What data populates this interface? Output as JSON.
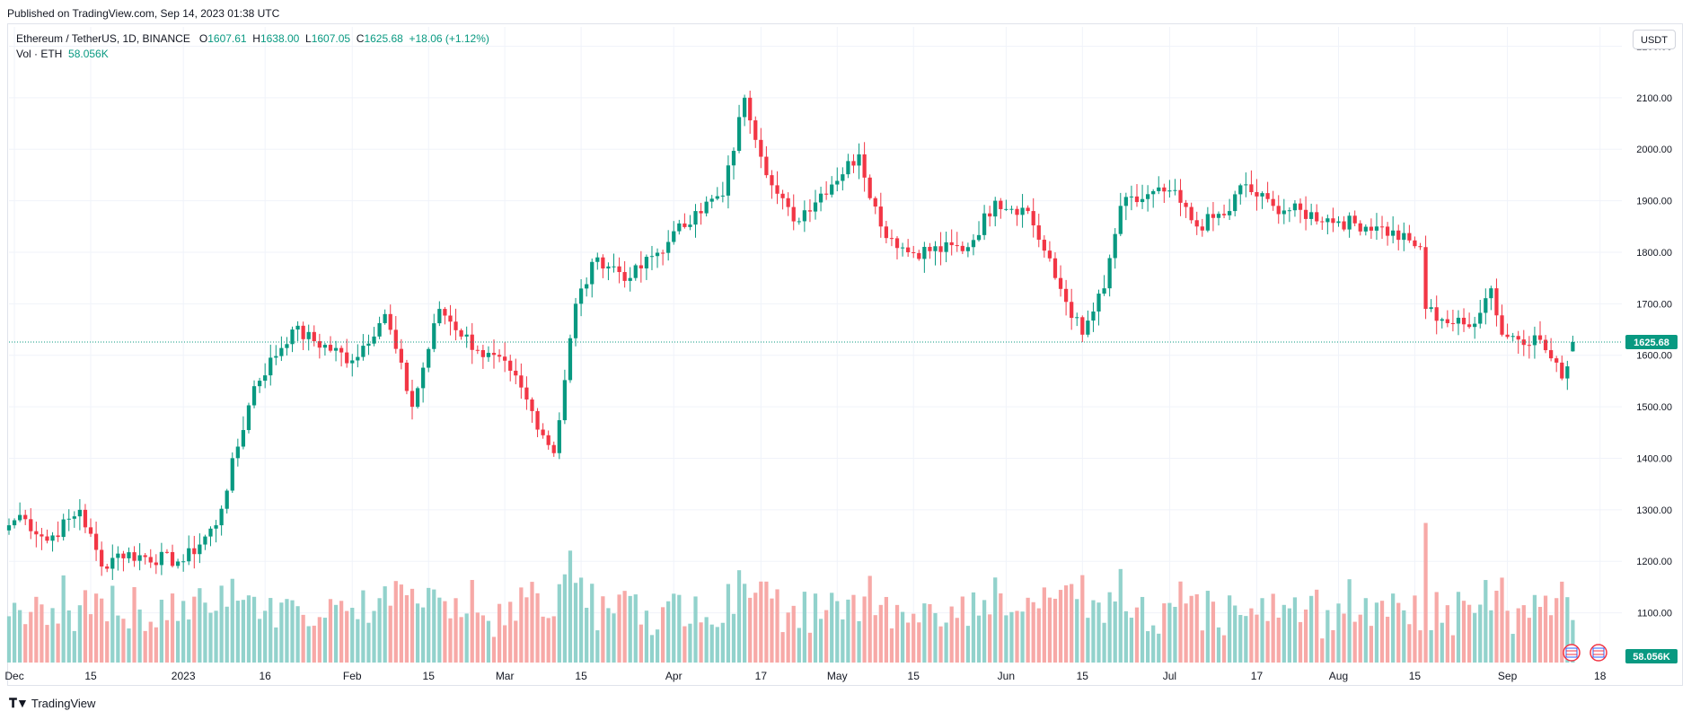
{
  "header": {
    "published": "Published on TradingView.com, Sep 14, 2023 01:38 UTC"
  },
  "legend": {
    "symbol": "Ethereum / TetherUS, 1D, BINANCE",
    "open_label": "O",
    "open": "1607.61",
    "high_label": "H",
    "high": "1638.00",
    "low_label": "L",
    "low": "1607.05",
    "close_label": "C",
    "close": "1625.68",
    "change": "+18.06 (+1.12%)",
    "volume_label": "Vol · ETH",
    "volume": "58.056K"
  },
  "currency_button": "USDT",
  "footer": {
    "logo_text": "TradingView",
    "logo_icon": "tradingview-logo-icon"
  },
  "colors": {
    "up": "#089981",
    "down": "#f23645",
    "up_volume": "#92d2cc",
    "down_volume": "#f7a9a7",
    "grid": "#f0f3fa",
    "price_line": "#089981"
  },
  "icons": [
    "us-flag-event-icon",
    "us-flag-event-icon"
  ],
  "chart_data": {
    "type": "candlestick",
    "title": "Ethereum / TetherUS, 1D, BINANCE",
    "y_axis": {
      "ylim": [
        1000,
        2220
      ],
      "ticks": [
        "1100.00",
        "1200.00",
        "1300.00",
        "1400.00",
        "1500.00",
        "1600.00",
        "1700.00",
        "1800.00",
        "1900.00",
        "2000.00",
        "2100.00",
        "2200.00"
      ],
      "tick_values": [
        1100,
        1200,
        1300,
        1400,
        1500,
        1600,
        1700,
        1800,
        1900,
        2000,
        2100,
        2200
      ],
      "unit": "USDT"
    },
    "x_axis": {
      "start_date": "2022-11-30",
      "end_date": "2023-09-22",
      "ticks": [
        {
          "label": "Dec",
          "date": "2022-12-01"
        },
        {
          "label": "15",
          "date": "2022-12-15"
        },
        {
          "label": "2023",
          "date": "2023-01-01"
        },
        {
          "label": "16",
          "date": "2023-01-16"
        },
        {
          "label": "Feb",
          "date": "2023-02-01"
        },
        {
          "label": "15",
          "date": "2023-02-15"
        },
        {
          "label": "Mar",
          "date": "2023-03-01"
        },
        {
          "label": "15",
          "date": "2023-03-15"
        },
        {
          "label": "Apr",
          "date": "2023-04-01"
        },
        {
          "label": "17",
          "date": "2023-04-17"
        },
        {
          "label": "May",
          "date": "2023-05-01"
        },
        {
          "label": "15",
          "date": "2023-05-15"
        },
        {
          "label": "Jun",
          "date": "2023-06-01"
        },
        {
          "label": "15",
          "date": "2023-06-15"
        },
        {
          "label": "Jul",
          "date": "2023-07-01"
        },
        {
          "label": "17",
          "date": "2023-07-17"
        },
        {
          "label": "Aug",
          "date": "2023-08-01"
        },
        {
          "label": "15",
          "date": "2023-08-15"
        },
        {
          "label": "Sep",
          "date": "2023-09-01"
        },
        {
          "label": "18",
          "date": "2023-09-18"
        }
      ]
    },
    "last_price": {
      "value": 1625.68,
      "label": "1625.68"
    },
    "last_volume": {
      "label": "58.056K"
    },
    "anchors": [
      {
        "date": "2022-11-30",
        "close": 1270
      },
      {
        "date": "2022-12-02",
        "close": 1290
      },
      {
        "date": "2022-12-07",
        "close": 1240
      },
      {
        "date": "2022-12-13",
        "close": 1300
      },
      {
        "date": "2022-12-17",
        "close": 1190
      },
      {
        "date": "2022-12-20",
        "close": 1215
      },
      {
        "date": "2023-01-01",
        "close": 1200
      },
      {
        "date": "2023-01-07",
        "close": 1270
      },
      {
        "date": "2023-01-14",
        "close": 1540
      },
      {
        "date": "2023-01-21",
        "close": 1650
      },
      {
        "date": "2023-02-01",
        "close": 1590
      },
      {
        "date": "2023-02-07",
        "close": 1680
      },
      {
        "date": "2023-02-12",
        "close": 1500
      },
      {
        "date": "2023-02-17",
        "close": 1690
      },
      {
        "date": "2023-02-24",
        "close": 1610
      },
      {
        "date": "2023-03-02",
        "close": 1570
      },
      {
        "date": "2023-03-10",
        "close": 1410
      },
      {
        "date": "2023-03-14",
        "close": 1700
      },
      {
        "date": "2023-03-18",
        "close": 1790
      },
      {
        "date": "2023-03-24",
        "close": 1750
      },
      {
        "date": "2023-03-31",
        "close": 1820
      },
      {
        "date": "2023-04-05",
        "close": 1880
      },
      {
        "date": "2023-04-10",
        "close": 1910
      },
      {
        "date": "2023-04-14",
        "close": 2100
      },
      {
        "date": "2023-04-19",
        "close": 1930
      },
      {
        "date": "2023-04-23",
        "close": 1860
      },
      {
        "date": "2023-05-05",
        "close": 1990
      },
      {
        "date": "2023-05-09",
        "close": 1850
      },
      {
        "date": "2023-05-14",
        "close": 1800
      },
      {
        "date": "2023-05-25",
        "close": 1810
      },
      {
        "date": "2023-05-30",
        "close": 1900
      },
      {
        "date": "2023-06-05",
        "close": 1880
      },
      {
        "date": "2023-06-10",
        "close": 1750
      },
      {
        "date": "2023-06-15",
        "close": 1640
      },
      {
        "date": "2023-06-19",
        "close": 1730
      },
      {
        "date": "2023-06-22",
        "close": 1890
      },
      {
        "date": "2023-07-01",
        "close": 1920
      },
      {
        "date": "2023-07-06",
        "close": 1850
      },
      {
        "date": "2023-07-12",
        "close": 1880
      },
      {
        "date": "2023-07-14",
        "close": 1930
      },
      {
        "date": "2023-07-20",
        "close": 1890
      },
      {
        "date": "2023-08-01",
        "close": 1860
      },
      {
        "date": "2023-08-08",
        "close": 1850
      },
      {
        "date": "2023-08-16",
        "close": 1810
      },
      {
        "date": "2023-08-17",
        "close": 1690
      },
      {
        "date": "2023-08-20",
        "close": 1670
      },
      {
        "date": "2023-08-25",
        "close": 1655
      },
      {
        "date": "2023-08-29",
        "close": 1730
      },
      {
        "date": "2023-08-31",
        "close": 1640
      },
      {
        "date": "2023-09-07",
        "close": 1630
      },
      {
        "date": "2023-09-11",
        "close": 1555
      },
      {
        "date": "2023-09-13",
        "close": 1625.68
      }
    ]
  }
}
